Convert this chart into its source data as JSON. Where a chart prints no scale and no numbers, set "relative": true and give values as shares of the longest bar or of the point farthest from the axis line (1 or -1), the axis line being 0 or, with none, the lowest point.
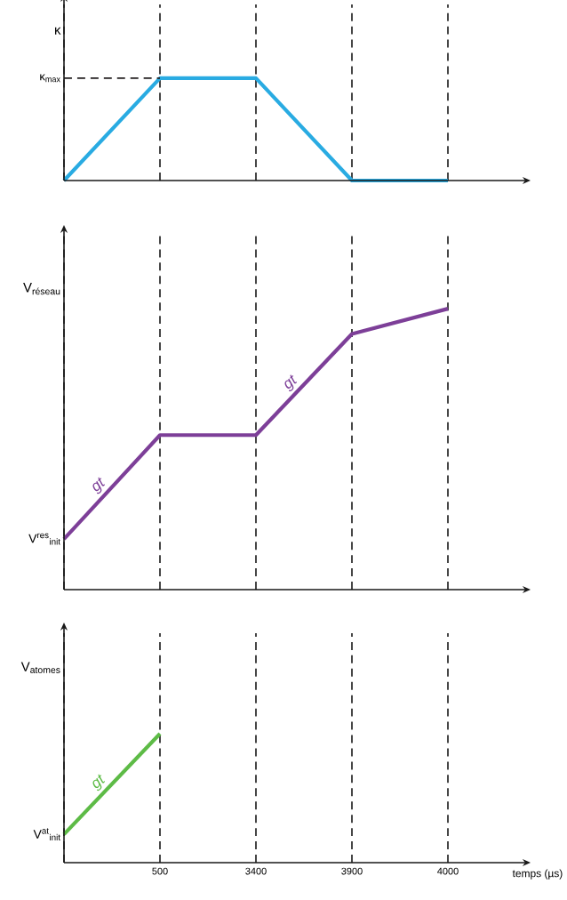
{
  "chart_data": [
    {
      "type": "line",
      "relative": true,
      "ylabel": "κ",
      "categories": [
        null,
        "500",
        "3400",
        "3900",
        "4000"
      ],
      "grid": "x",
      "tick_labels": false,
      "series": [
        {
          "color": "#29abe2",
          "values": [
            0,
            1,
            1,
            0,
            0
          ]
        }
      ],
      "ref_lines": [
        {
          "axis": "y",
          "value": 1,
          "label": "κ$_{max}$",
          "line_style": "dashed",
          "color": "#231f20"
        }
      ]
    },
    {
      "type": "line",
      "relative": true,
      "ylabel": "V$_{réseau}$",
      "categories": [
        null,
        "500",
        "3400",
        "3900",
        "4000"
      ],
      "grid": "x",
      "tick_labels": false,
      "series": [
        {
          "color": "#7d3f98",
          "values": [
            0.18,
            0.55,
            0.55,
            0.91,
            1
          ]
        }
      ],
      "annotations": [
        "V$^{res}$$_{init}$",
        "gt",
        "gt"
      ]
    },
    {
      "type": "line",
      "relative": true,
      "ylabel": "V$_{atomes}$",
      "xlabel": "temps (µs)",
      "categories": [
        null,
        "500",
        "3400",
        "3900",
        "4000"
      ],
      "grid": "x",
      "tick_labels": "x",
      "series": [
        {
          "color": "#5dbb46",
          "values": [
            0.22,
            1,
            null,
            null,
            null
          ]
        }
      ],
      "annotations": [
        "V$^{at}$$_{init}$",
        "gt"
      ]
    }
  ]
}
